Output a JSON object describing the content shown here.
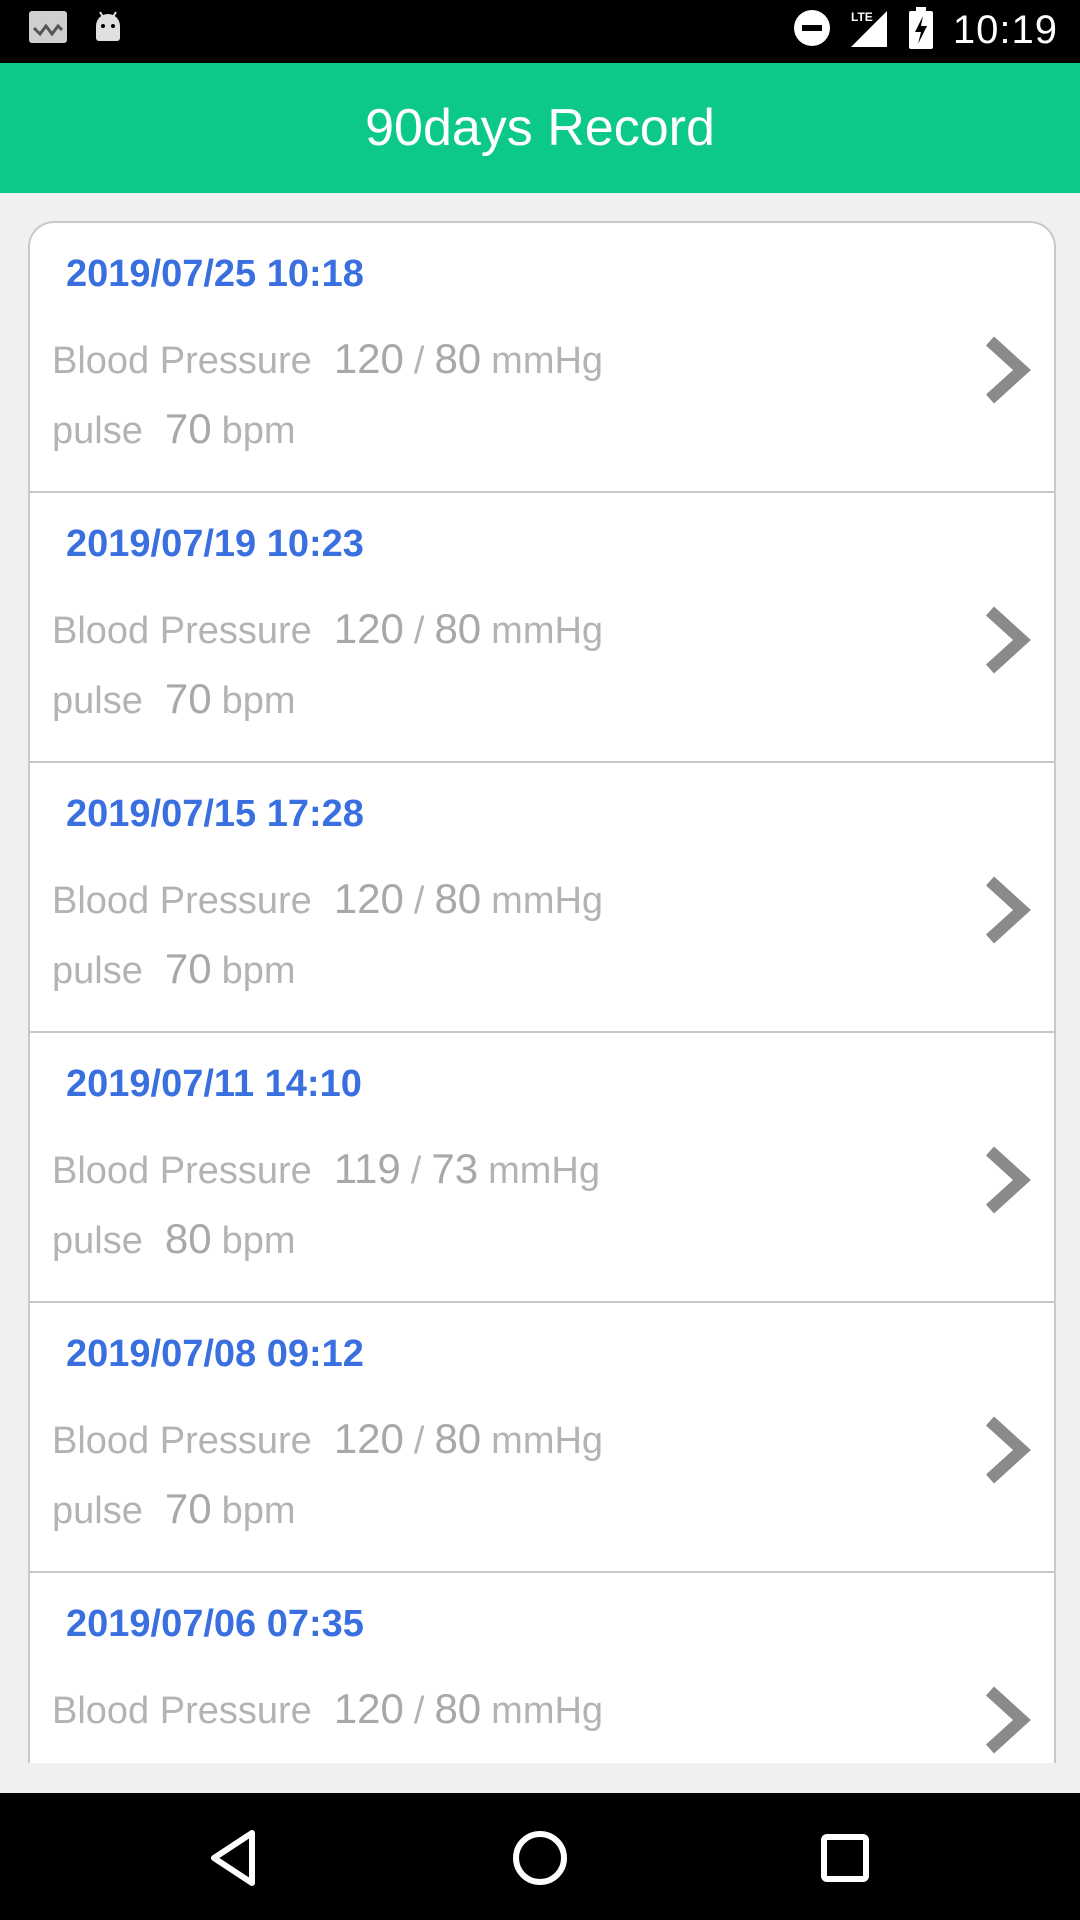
{
  "status_bar": {
    "time": "10:19",
    "icons": [
      "notification-icon",
      "android-icon",
      "do-not-disturb-icon",
      "lte-signal-icon",
      "battery-charging-icon"
    ]
  },
  "app_bar": {
    "title": "90days Record"
  },
  "records": [
    {
      "datetime": "2019/07/25 10:18",
      "bp_label": "Blood Pressure",
      "systolic": "120",
      "slash": "/",
      "diastolic": "80",
      "bp_unit": "mmHg",
      "pulse_label": "pulse",
      "pulse": "70",
      "pulse_unit": "bpm"
    },
    {
      "datetime": "2019/07/19 10:23",
      "bp_label": "Blood Pressure",
      "systolic": "120",
      "slash": "/",
      "diastolic": "80",
      "bp_unit": "mmHg",
      "pulse_label": "pulse",
      "pulse": "70",
      "pulse_unit": "bpm"
    },
    {
      "datetime": "2019/07/15 17:28",
      "bp_label": "Blood Pressure",
      "systolic": "120",
      "slash": "/",
      "diastolic": "80",
      "bp_unit": "mmHg",
      "pulse_label": "pulse",
      "pulse": "70",
      "pulse_unit": "bpm"
    },
    {
      "datetime": "2019/07/11 14:10",
      "bp_label": "Blood Pressure",
      "systolic": "119",
      "slash": "/",
      "diastolic": "73",
      "bp_unit": "mmHg",
      "pulse_label": "pulse",
      "pulse": "80",
      "pulse_unit": "bpm"
    },
    {
      "datetime": "2019/07/08 09:12",
      "bp_label": "Blood Pressure",
      "systolic": "120",
      "slash": "/",
      "diastolic": "80",
      "bp_unit": "mmHg",
      "pulse_label": "pulse",
      "pulse": "70",
      "pulse_unit": "bpm"
    },
    {
      "datetime": "2019/07/06 07:35",
      "bp_label": "Blood Pressure",
      "systolic": "120",
      "slash": "/",
      "diastolic": "80",
      "bp_unit": "mmHg",
      "pulse_label": "pulse",
      "pulse": "",
      "pulse_unit": ""
    }
  ],
  "nav_bar": {
    "buttons": [
      "back-icon",
      "home-icon",
      "recents-icon"
    ]
  },
  "colors": {
    "accent": "#0dc987",
    "date": "#3a6fe0",
    "muted_text": "#b3b3b3",
    "chevron": "#8a8a8a"
  }
}
